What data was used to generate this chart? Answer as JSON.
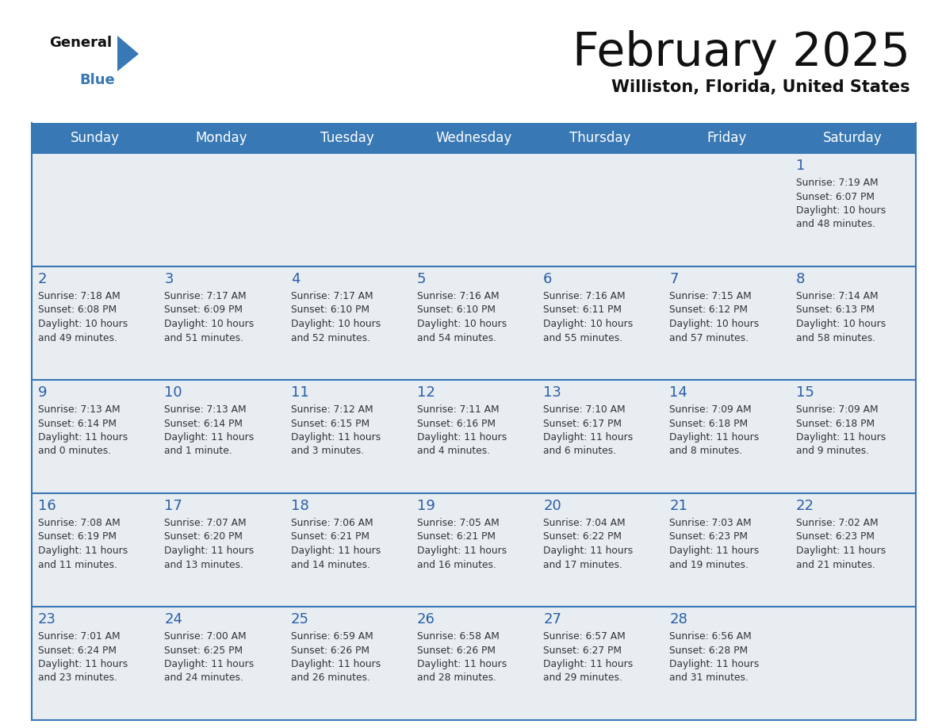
{
  "title": "February 2025",
  "subtitle": "Williston, Florida, United States",
  "header_color": "#3878b4",
  "header_text_color": "#ffffff",
  "day_names": [
    "Sunday",
    "Monday",
    "Tuesday",
    "Wednesday",
    "Thursday",
    "Friday",
    "Saturday"
  ],
  "bg_color": "#ffffff",
  "cell_bg": "#e8edf2",
  "date_color": "#2a5fa8",
  "info_color": "#333333",
  "line_color": "#3878b4",
  "weeks": [
    [
      {
        "day": null
      },
      {
        "day": null
      },
      {
        "day": null
      },
      {
        "day": null
      },
      {
        "day": null
      },
      {
        "day": null
      },
      {
        "day": 1,
        "sunrise": "7:19 AM",
        "sunset": "6:07 PM",
        "daylight1": "10 hours",
        "daylight2": "and 48 minutes."
      }
    ],
    [
      {
        "day": 2,
        "sunrise": "7:18 AM",
        "sunset": "6:08 PM",
        "daylight1": "10 hours",
        "daylight2": "and 49 minutes."
      },
      {
        "day": 3,
        "sunrise": "7:17 AM",
        "sunset": "6:09 PM",
        "daylight1": "10 hours",
        "daylight2": "and 51 minutes."
      },
      {
        "day": 4,
        "sunrise": "7:17 AM",
        "sunset": "6:10 PM",
        "daylight1": "10 hours",
        "daylight2": "and 52 minutes."
      },
      {
        "day": 5,
        "sunrise": "7:16 AM",
        "sunset": "6:10 PM",
        "daylight1": "10 hours",
        "daylight2": "and 54 minutes."
      },
      {
        "day": 6,
        "sunrise": "7:16 AM",
        "sunset": "6:11 PM",
        "daylight1": "10 hours",
        "daylight2": "and 55 minutes."
      },
      {
        "day": 7,
        "sunrise": "7:15 AM",
        "sunset": "6:12 PM",
        "daylight1": "10 hours",
        "daylight2": "and 57 minutes."
      },
      {
        "day": 8,
        "sunrise": "7:14 AM",
        "sunset": "6:13 PM",
        "daylight1": "10 hours",
        "daylight2": "and 58 minutes."
      }
    ],
    [
      {
        "day": 9,
        "sunrise": "7:13 AM",
        "sunset": "6:14 PM",
        "daylight1": "11 hours",
        "daylight2": "and 0 minutes."
      },
      {
        "day": 10,
        "sunrise": "7:13 AM",
        "sunset": "6:14 PM",
        "daylight1": "11 hours",
        "daylight2": "and 1 minute."
      },
      {
        "day": 11,
        "sunrise": "7:12 AM",
        "sunset": "6:15 PM",
        "daylight1": "11 hours",
        "daylight2": "and 3 minutes."
      },
      {
        "day": 12,
        "sunrise": "7:11 AM",
        "sunset": "6:16 PM",
        "daylight1": "11 hours",
        "daylight2": "and 4 minutes."
      },
      {
        "day": 13,
        "sunrise": "7:10 AM",
        "sunset": "6:17 PM",
        "daylight1": "11 hours",
        "daylight2": "and 6 minutes."
      },
      {
        "day": 14,
        "sunrise": "7:09 AM",
        "sunset": "6:18 PM",
        "daylight1": "11 hours",
        "daylight2": "and 8 minutes."
      },
      {
        "day": 15,
        "sunrise": "7:09 AM",
        "sunset": "6:18 PM",
        "daylight1": "11 hours",
        "daylight2": "and 9 minutes."
      }
    ],
    [
      {
        "day": 16,
        "sunrise": "7:08 AM",
        "sunset": "6:19 PM",
        "daylight1": "11 hours",
        "daylight2": "and 11 minutes."
      },
      {
        "day": 17,
        "sunrise": "7:07 AM",
        "sunset": "6:20 PM",
        "daylight1": "11 hours",
        "daylight2": "and 13 minutes."
      },
      {
        "day": 18,
        "sunrise": "7:06 AM",
        "sunset": "6:21 PM",
        "daylight1": "11 hours",
        "daylight2": "and 14 minutes."
      },
      {
        "day": 19,
        "sunrise": "7:05 AM",
        "sunset": "6:21 PM",
        "daylight1": "11 hours",
        "daylight2": "and 16 minutes."
      },
      {
        "day": 20,
        "sunrise": "7:04 AM",
        "sunset": "6:22 PM",
        "daylight1": "11 hours",
        "daylight2": "and 17 minutes."
      },
      {
        "day": 21,
        "sunrise": "7:03 AM",
        "sunset": "6:23 PM",
        "daylight1": "11 hours",
        "daylight2": "and 19 minutes."
      },
      {
        "day": 22,
        "sunrise": "7:02 AM",
        "sunset": "6:23 PM",
        "daylight1": "11 hours",
        "daylight2": "and 21 minutes."
      }
    ],
    [
      {
        "day": 23,
        "sunrise": "7:01 AM",
        "sunset": "6:24 PM",
        "daylight1": "11 hours",
        "daylight2": "and 23 minutes."
      },
      {
        "day": 24,
        "sunrise": "7:00 AM",
        "sunset": "6:25 PM",
        "daylight1": "11 hours",
        "daylight2": "and 24 minutes."
      },
      {
        "day": 25,
        "sunrise": "6:59 AM",
        "sunset": "6:26 PM",
        "daylight1": "11 hours",
        "daylight2": "and 26 minutes."
      },
      {
        "day": 26,
        "sunrise": "6:58 AM",
        "sunset": "6:26 PM",
        "daylight1": "11 hours",
        "daylight2": "and 28 minutes."
      },
      {
        "day": 27,
        "sunrise": "6:57 AM",
        "sunset": "6:27 PM",
        "daylight1": "11 hours",
        "daylight2": "and 29 minutes."
      },
      {
        "day": 28,
        "sunrise": "6:56 AM",
        "sunset": "6:28 PM",
        "daylight1": "11 hours",
        "daylight2": "and 31 minutes."
      },
      {
        "day": null
      }
    ]
  ]
}
